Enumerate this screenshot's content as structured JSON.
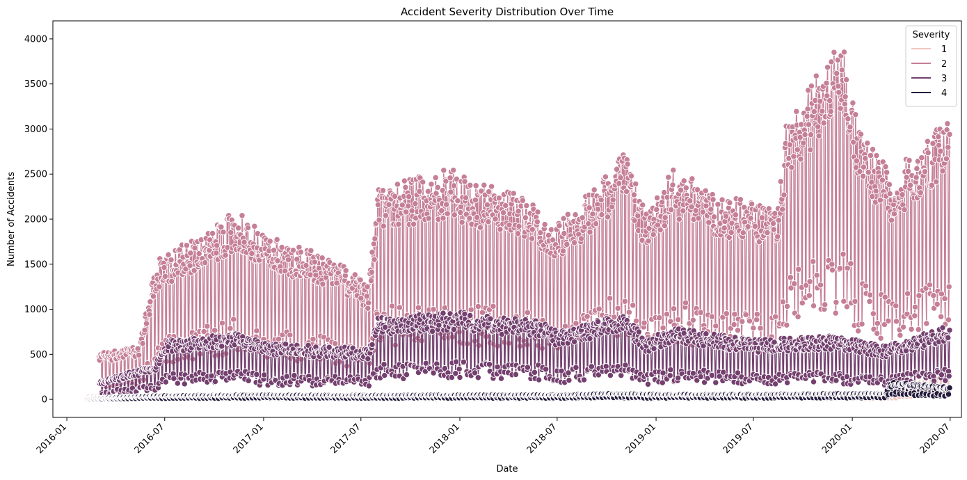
{
  "chart_data": {
    "type": "line",
    "title": "Accident Severity Distribution Over Time",
    "xlabel": "Date",
    "ylabel": "Number of Accidents",
    "xlim": [
      "2015-12-06",
      "2020-07-22"
    ],
    "ylim": [
      -200,
      4200
    ],
    "x_ticks": [
      "2016-01",
      "2016-07",
      "2017-01",
      "2017-07",
      "2018-01",
      "2018-07",
      "2019-01",
      "2019-07",
      "2020-01",
      "2020-07"
    ],
    "y_ticks": [
      0,
      500,
      1000,
      1500,
      2000,
      2500,
      3000,
      3500,
      4000
    ],
    "grid": false,
    "markers": true,
    "legend": {
      "title": "Severity",
      "placement": "top-right",
      "entries": [
        "1",
        "2",
        "3",
        "4"
      ]
    },
    "series": [
      {
        "name": "1",
        "color": "#f0c8c0",
        "start": "2016-02-08",
        "end": "2020-06-30",
        "points": [
          [
            "2016-02-08",
            30
          ],
          [
            "2016-06-01",
            10
          ],
          [
            "2017-01-01",
            12
          ],
          [
            "2017-07-01",
            15
          ],
          [
            "2018-01-01",
            12
          ],
          [
            "2018-07-01",
            10
          ],
          [
            "2019-01-01",
            10
          ],
          [
            "2019-07-01",
            10
          ],
          [
            "2020-01-01",
            8
          ],
          [
            "2020-03-15",
            40
          ],
          [
            "2020-04-15",
            120
          ],
          [
            "2020-06-30",
            300
          ]
        ]
      },
      {
        "name": "2",
        "color": "#c57f96",
        "start": "2016-03-01",
        "end": "2020-06-30",
        "points": [
          [
            "2016-03-01",
            450
          ],
          [
            "2016-05-15",
            520
          ],
          [
            "2016-06-15",
            1350
          ],
          [
            "2016-09-01",
            1600
          ],
          [
            "2016-11-15",
            1850
          ],
          [
            "2017-01-01",
            1600
          ],
          [
            "2017-04-01",
            1450
          ],
          [
            "2017-06-01",
            1300
          ],
          [
            "2017-07-15",
            1100
          ],
          [
            "2017-08-01",
            2050
          ],
          [
            "2017-10-01",
            2150
          ],
          [
            "2017-12-15",
            2250
          ],
          [
            "2018-01-15",
            2150
          ],
          [
            "2018-03-15",
            2050
          ],
          [
            "2018-05-15",
            1950
          ],
          [
            "2018-07-01",
            1700
          ],
          [
            "2018-09-15",
            2100
          ],
          [
            "2018-11-01",
            2450
          ],
          [
            "2018-12-15",
            1800
          ],
          [
            "2019-02-01",
            2250
          ],
          [
            "2019-05-01",
            2000
          ],
          [
            "2019-08-15",
            1850
          ],
          [
            "2019-09-01",
            2750
          ],
          [
            "2019-11-15",
            3300
          ],
          [
            "2019-12-15",
            3500
          ],
          [
            "2020-01-15",
            2600
          ],
          [
            "2020-03-15",
            2200
          ],
          [
            "2020-06-30",
            2800
          ]
        ]
      },
      {
        "name": "3",
        "color": "#74406f",
        "start": "2016-03-01",
        "end": "2020-06-30",
        "points": [
          [
            "2016-03-01",
            170
          ],
          [
            "2016-06-15",
            350
          ],
          [
            "2016-07-01",
            580
          ],
          [
            "2016-11-15",
            650
          ],
          [
            "2017-01-01",
            550
          ],
          [
            "2017-07-15",
            500
          ],
          [
            "2017-08-01",
            800
          ],
          [
            "2018-01-01",
            850
          ],
          [
            "2018-06-15",
            750
          ],
          [
            "2018-07-01",
            650
          ],
          [
            "2018-11-01",
            850
          ],
          [
            "2018-12-15",
            580
          ],
          [
            "2019-02-01",
            700
          ],
          [
            "2019-07-01",
            580
          ],
          [
            "2019-12-01",
            620
          ],
          [
            "2020-03-01",
            520
          ],
          [
            "2020-06-30",
            720
          ]
        ]
      },
      {
        "name": "4",
        "color": "#241a3b",
        "start": "2016-02-08",
        "end": "2020-06-30",
        "points": [
          [
            "2016-02-08",
            5
          ],
          [
            "2016-06-01",
            35
          ],
          [
            "2017-01-01",
            45
          ],
          [
            "2017-07-01",
            40
          ],
          [
            "2018-01-01",
            45
          ],
          [
            "2018-07-01",
            45
          ],
          [
            "2018-11-01",
            60
          ],
          [
            "2019-01-01",
            50
          ],
          [
            "2019-07-01",
            50
          ],
          [
            "2020-03-01",
            60
          ],
          [
            "2020-03-15",
            170
          ],
          [
            "2020-06-30",
            120
          ]
        ]
      }
    ]
  }
}
